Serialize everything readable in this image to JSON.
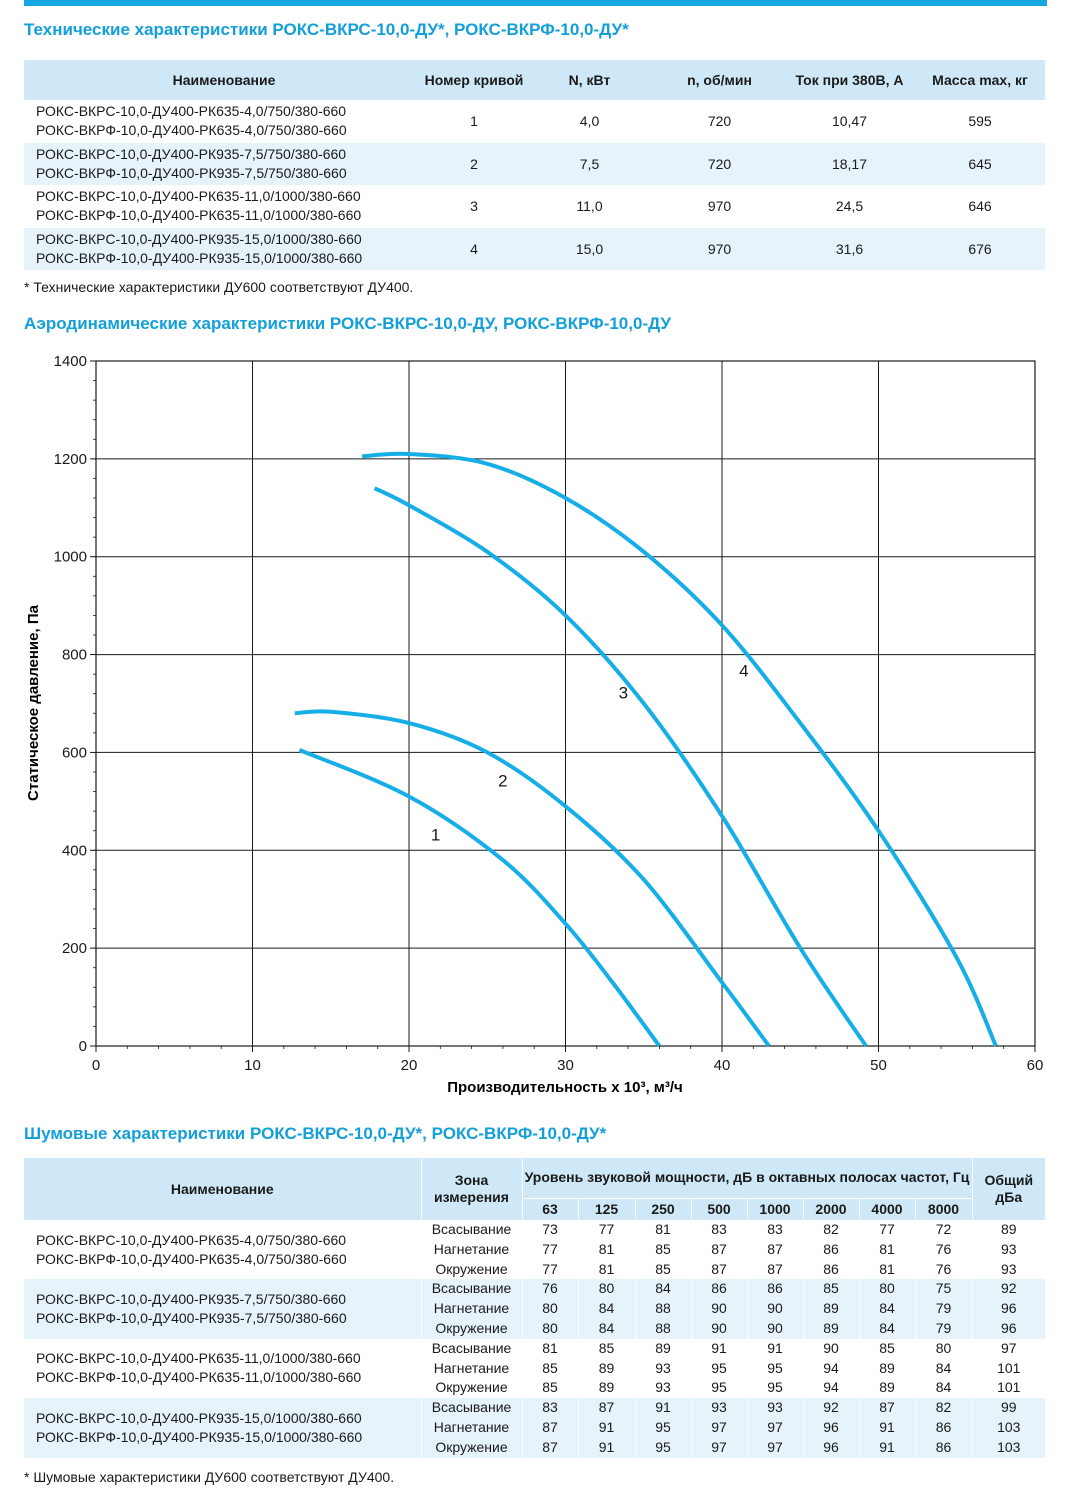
{
  "tech": {
    "title": "Технические характеристики РОКС-ВКРС-10,0-ДУ*, РОКС-ВКРФ-10,0-ДУ*",
    "headers": [
      "Наименование",
      "Номер кривой",
      "N, кВт",
      "n, об/мин",
      "Ток при 380В, А",
      "Масса max, кг"
    ],
    "rows": [
      {
        "name": [
          "РОКС-ВКРС-10,0-ДУ400-РК635-4,0/750/380-660",
          "РОКС-ВКРФ-10,0-ДУ400-РК635-4,0/750/380-660"
        ],
        "curve": "1",
        "power": "4,0",
        "rpm": "720",
        "current": "10,47",
        "mass": "595"
      },
      {
        "name": [
          "РОКС-ВКРС-10,0-ДУ400-РК935-7,5/750/380-660",
          "РОКС-ВКРФ-10,0-ДУ400-РК935-7,5/750/380-660"
        ],
        "curve": "2",
        "power": "7,5",
        "rpm": "720",
        "current": "18,17",
        "mass": "645"
      },
      {
        "name": [
          "РОКС-ВКРС-10,0-ДУ400-РК635-11,0/1000/380-660",
          "РОКС-ВКРФ-10,0-ДУ400-РК635-11,0/1000/380-660"
        ],
        "curve": "3",
        "power": "11,0",
        "rpm": "970",
        "current": "24,5",
        "mass": "646"
      },
      {
        "name": [
          "РОКС-ВКРС-10,0-ДУ400-РК935-15,0/1000/380-660",
          "РОКС-ВКРФ-10,0-ДУ400-РК935-15,0/1000/380-660"
        ],
        "curve": "4",
        "power": "15,0",
        "rpm": "970",
        "current": "31,6",
        "mass": "676"
      }
    ],
    "note": "* Технические характеристики ДУ600 соответствуют ДУ400."
  },
  "aero": {
    "title": "Аэродинамические характеристики РОКС-ВКРС-10,0-ДУ, РОКС-ВКРФ-10,0-ДУ"
  },
  "chart_data": {
    "type": "line",
    "xlabel": "Производительность х 10³, м³/ч",
    "ylabel": "Статическое давление, Па",
    "xlim": [
      0,
      60
    ],
    "ylim": [
      0,
      1400
    ],
    "xticks": [
      "0",
      "10",
      "20",
      "30",
      "40",
      "50",
      "60"
    ],
    "yticks": [
      "0",
      "200",
      "400",
      "600",
      "800",
      "1000",
      "1200",
      "1400"
    ],
    "grid": true,
    "color": "#16aee6",
    "series": [
      {
        "name": "1",
        "x": [
          13,
          20,
          26,
          30,
          33,
          36
        ],
        "y": [
          605,
          510,
          380,
          250,
          130,
          0
        ]
      },
      {
        "name": "2",
        "x": [
          12.7,
          15,
          20,
          25,
          30,
          35,
          40,
          43
        ],
        "y": [
          680,
          683,
          660,
          600,
          490,
          340,
          130,
          0
        ]
      },
      {
        "name": "3",
        "x": [
          17.8,
          20,
          25,
          30,
          35,
          40,
          45,
          49.2
        ],
        "y": [
          1140,
          1105,
          1010,
          880,
          700,
          470,
          200,
          0
        ]
      },
      {
        "name": "4",
        "x": [
          17,
          20,
          25,
          30,
          35,
          40,
          45,
          50,
          55,
          57.5
        ],
        "y": [
          1205,
          1210,
          1190,
          1120,
          1010,
          860,
          660,
          440,
          180,
          0
        ]
      }
    ],
    "labels": [
      {
        "text": "1",
        "x": 21.7,
        "y": 420
      },
      {
        "text": "2",
        "x": 26.0,
        "y": 530
      },
      {
        "text": "3",
        "x": 33.7,
        "y": 710
      },
      {
        "text": "4",
        "x": 41.4,
        "y": 755
      }
    ]
  },
  "noise": {
    "title": "Шумовые характеристики РОКС-ВКРС-10,0-ДУ*, РОКС-ВКРФ-10,0-ДУ*",
    "header_name": "Наименование",
    "header_zone": "Зона измерения",
    "header_level": "Уровень звуковой мощности, дБ в октавных полосах частот, Гц",
    "header_total": "Общий дБа",
    "freqs": [
      "63",
      "125",
      "250",
      "500",
      "1000",
      "2000",
      "4000",
      "8000"
    ],
    "groups": [
      {
        "name": [
          "РОКС-ВКРС-10,0-ДУ400-РК635-4,0/750/380-660",
          "РОКС-ВКРФ-10,0-ДУ400-РК635-4,0/750/380-660"
        ],
        "rows": [
          {
            "zone": "Всасывание",
            "vals": [
              "73",
              "77",
              "81",
              "83",
              "83",
              "82",
              "77",
              "72"
            ],
            "total": "89"
          },
          {
            "zone": "Нагнетание",
            "vals": [
              "77",
              "81",
              "85",
              "87",
              "87",
              "86",
              "81",
              "76"
            ],
            "total": "93"
          },
          {
            "zone": "Окружение",
            "vals": [
              "77",
              "81",
              "85",
              "87",
              "87",
              "86",
              "81",
              "76"
            ],
            "total": "93"
          }
        ]
      },
      {
        "name": [
          "РОКС-ВКРС-10,0-ДУ400-РК935-7,5/750/380-660",
          "РОКС-ВКРФ-10,0-ДУ400-РК935-7,5/750/380-660"
        ],
        "rows": [
          {
            "zone": "Всасывание",
            "vals": [
              "76",
              "80",
              "84",
              "86",
              "86",
              "85",
              "80",
              "75"
            ],
            "total": "92"
          },
          {
            "zone": "Нагнетание",
            "vals": [
              "80",
              "84",
              "88",
              "90",
              "90",
              "89",
              "84",
              "79"
            ],
            "total": "96"
          },
          {
            "zone": "Окружение",
            "vals": [
              "80",
              "84",
              "88",
              "90",
              "90",
              "89",
              "84",
              "79"
            ],
            "total": "96"
          }
        ]
      },
      {
        "name": [
          "РОКС-ВКРС-10,0-ДУ400-РК635-11,0/1000/380-660",
          "РОКС-ВКРФ-10,0-ДУ400-РК635-11,0/1000/380-660"
        ],
        "rows": [
          {
            "zone": "Всасывание",
            "vals": [
              "81",
              "85",
              "89",
              "91",
              "91",
              "90",
              "85",
              "80"
            ],
            "total": "97"
          },
          {
            "zone": "Нагнетание",
            "vals": [
              "85",
              "89",
              "93",
              "95",
              "95",
              "94",
              "89",
              "84"
            ],
            "total": "101"
          },
          {
            "zone": "Окружение",
            "vals": [
              "85",
              "89",
              "93",
              "95",
              "95",
              "94",
              "89",
              "84"
            ],
            "total": "101"
          }
        ]
      },
      {
        "name": [
          "РОКС-ВКРС-10,0-ДУ400-РК935-15,0/1000/380-660",
          "РОКС-ВКРФ-10,0-ДУ400-РК935-15,0/1000/380-660"
        ],
        "rows": [
          {
            "zone": "Всасывание",
            "vals": [
              "83",
              "87",
              "91",
              "93",
              "93",
              "92",
              "87",
              "82"
            ],
            "total": "99"
          },
          {
            "zone": "Нагнетание",
            "vals": [
              "87",
              "91",
              "95",
              "97",
              "97",
              "96",
              "91",
              "86"
            ],
            "total": "103"
          },
          {
            "zone": "Окружение",
            "vals": [
              "87",
              "91",
              "95",
              "97",
              "97",
              "96",
              "91",
              "86"
            ],
            "total": "103"
          }
        ]
      }
    ],
    "note": "* Шумовые характеристики ДУ600 соответствуют ДУ400."
  }
}
